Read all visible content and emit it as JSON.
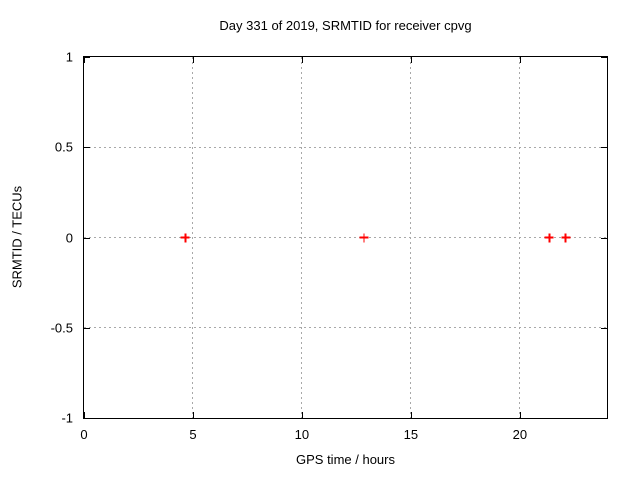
{
  "chart_data": {
    "type": "scatter",
    "title": "Day 331 of 2019, SRMTID for receiver cpvg",
    "xlabel": "GPS time / hours",
    "ylabel": "SRMTID / TECUs",
    "xlim": [
      0,
      24
    ],
    "ylim": [
      -1,
      1
    ],
    "xticks": [
      0,
      5,
      10,
      15,
      20
    ],
    "yticks": [
      -1,
      -0.5,
      0,
      0.5,
      1
    ],
    "grid": true,
    "legend": false,
    "series": [
      {
        "marker": "plus",
        "color": "#ff0000",
        "x": [
          4.65,
          12.85,
          21.35,
          22.1
        ],
        "y": [
          0,
          0,
          0,
          0
        ]
      }
    ]
  },
  "colors": {
    "background": "#ffffff",
    "frame": "#000000",
    "grid": "#a8a8a8",
    "text": "#000000",
    "marker": "#ff0000"
  }
}
